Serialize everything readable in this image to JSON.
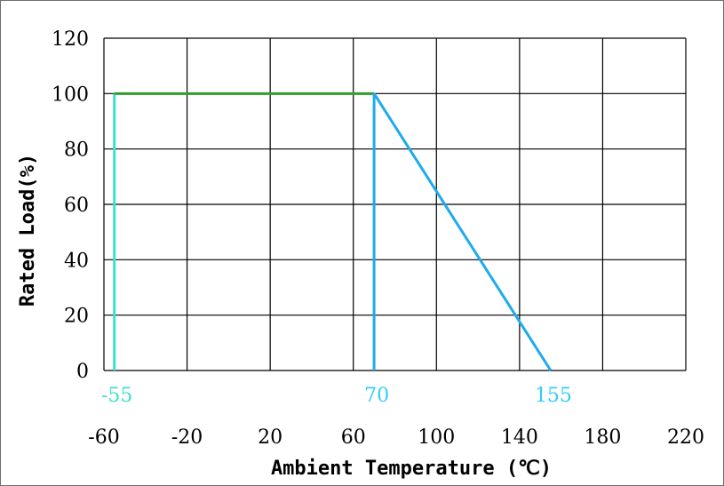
{
  "chart_data": {
    "type": "line",
    "title": "",
    "xlabel": "Ambient Temperature (℃)",
    "ylabel": "Rated Load(%)",
    "xlim": [
      -60,
      220
    ],
    "ylim": [
      0,
      120
    ],
    "x_ticks": [
      "-60",
      "-20",
      "20",
      "60",
      "100",
      "140",
      "180",
      "220"
    ],
    "y_ticks": [
      "0",
      "20",
      "40",
      "60",
      "80",
      "100",
      "120"
    ],
    "grid": true,
    "marker_labels": [
      {
        "text": "-55",
        "x": -55,
        "color": "#40e0d0"
      },
      {
        "text": "70",
        "x": 70,
        "color": "#33ccff"
      },
      {
        "text": "155",
        "x": 155,
        "color": "#33ccff"
      }
    ],
    "series": [
      {
        "x": [
          -55,
          -55
        ],
        "y": [
          0,
          100
        ],
        "color": "#40e0d0"
      },
      {
        "x": [
          -55,
          70
        ],
        "y": [
          100,
          100
        ],
        "color": "#2e9e2e"
      },
      {
        "x": [
          70,
          70
        ],
        "y": [
          0,
          100
        ],
        "color": "#1eaaee"
      },
      {
        "x": [
          70,
          155
        ],
        "y": [
          100,
          0
        ],
        "color": "#1eaaee"
      }
    ]
  }
}
